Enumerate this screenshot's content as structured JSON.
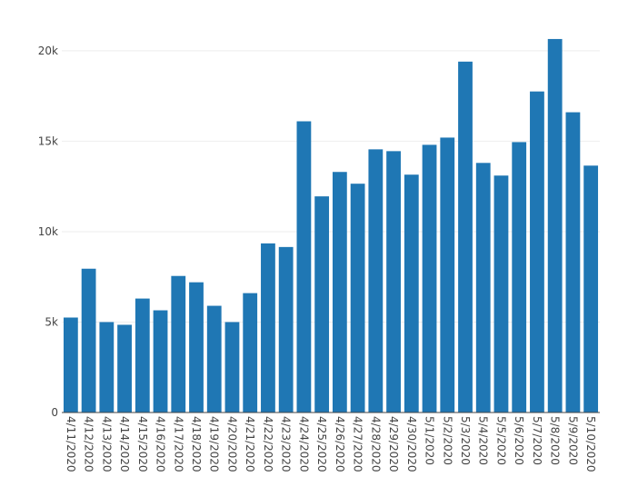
{
  "chart_data": {
    "type": "bar",
    "title": "",
    "xlabel": "",
    "ylabel": "",
    "categories": [
      "4/11/2020",
      "4/12/2020",
      "4/13/2020",
      "4/14/2020",
      "4/15/2020",
      "4/16/2020",
      "4/17/2020",
      "4/18/2020",
      "4/19/2020",
      "4/20/2020",
      "4/21/2020",
      "4/22/2020",
      "4/23/2020",
      "4/24/2020",
      "4/25/2020",
      "4/26/2020",
      "4/27/2020",
      "4/28/2020",
      "4/29/2020",
      "4/30/2020",
      "5/1/2020",
      "5/2/2020",
      "5/3/2020",
      "5/4/2020",
      "5/5/2020",
      "5/6/2020",
      "5/7/2020",
      "5/8/2020",
      "5/9/2020",
      "5/10/2020"
    ],
    "values": [
      5250,
      7950,
      5000,
      4850,
      6300,
      5650,
      7550,
      7200,
      5900,
      5000,
      6600,
      9350,
      9150,
      16100,
      11950,
      13300,
      12650,
      14550,
      14450,
      13150,
      14800,
      15200,
      19400,
      13800,
      13100,
      14950,
      17750,
      20650,
      16600,
      13650
    ],
    "ylim": [
      0,
      21300
    ],
    "y_ticks": [
      0,
      5000,
      10000,
      15000,
      20000
    ],
    "y_tick_labels": [
      "0",
      "5k",
      "10k",
      "15k",
      "20k"
    ],
    "grid": true,
    "bar_color": "#1f77b4"
  }
}
